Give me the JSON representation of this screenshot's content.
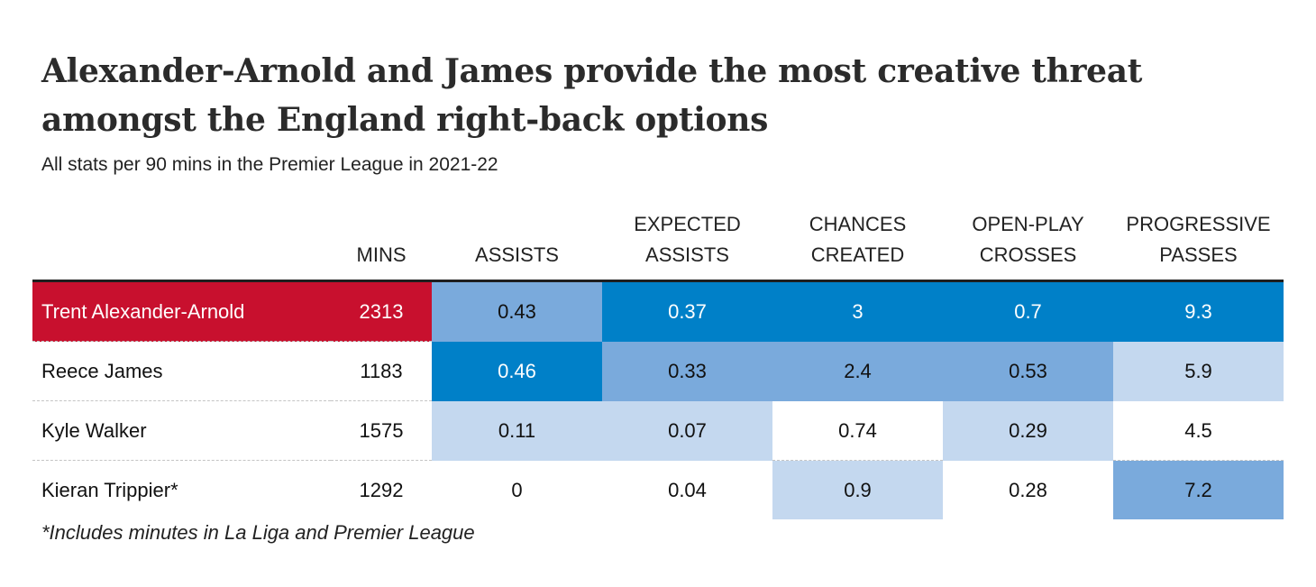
{
  "title": "Alexander-Arnold and James provide the most creative threat amongst the England right-back options",
  "subtitle": "All stats per 90 mins in the Premier League in 2021-22",
  "footnote": "*Includes minutes in La Liga and Premier League",
  "colors": {
    "highlight_red": "#c8102e",
    "shade_high": "#0080c8",
    "shade_mid": "#7aaadc",
    "shade_low": "#c4d8ef",
    "shade_none": "#ffffff"
  },
  "chart_data": {
    "type": "table",
    "title": "Alexander-Arnold and James provide the most creative threat amongst the England right-back options",
    "subtitle": "All stats per 90 mins in the Premier League in 2021-22",
    "columns": [
      {
        "key": "name",
        "lines": [
          ""
        ]
      },
      {
        "key": "mins",
        "lines": [
          "MINS"
        ]
      },
      {
        "key": "assists",
        "lines": [
          "ASSISTS"
        ]
      },
      {
        "key": "xa",
        "lines": [
          "EXPECTED",
          "ASSISTS"
        ]
      },
      {
        "key": "chances",
        "lines": [
          "CHANCES",
          "CREATED"
        ]
      },
      {
        "key": "crosses",
        "lines": [
          "OPEN-PLAY",
          "CROSSES"
        ]
      },
      {
        "key": "progressive",
        "lines": [
          "PROGRESSIVE",
          "PASSES"
        ]
      }
    ],
    "highlighted_row": 0,
    "rows": [
      {
        "name": "Trent Alexander-Arnold",
        "mins": "2313",
        "cells": [
          {
            "value": "0.43",
            "shade": "mid"
          },
          {
            "value": "0.37",
            "shade": "high"
          },
          {
            "value": "3",
            "shade": "high"
          },
          {
            "value": "0.7",
            "shade": "high"
          },
          {
            "value": "9.3",
            "shade": "high"
          }
        ]
      },
      {
        "name": "Reece James",
        "mins": "1183",
        "cells": [
          {
            "value": "0.46",
            "shade": "high"
          },
          {
            "value": "0.33",
            "shade": "mid"
          },
          {
            "value": "2.4",
            "shade": "mid"
          },
          {
            "value": "0.53",
            "shade": "mid"
          },
          {
            "value": "5.9",
            "shade": "low"
          }
        ]
      },
      {
        "name": "Kyle Walker",
        "mins": "1575",
        "cells": [
          {
            "value": "0.11",
            "shade": "low"
          },
          {
            "value": "0.07",
            "shade": "low"
          },
          {
            "value": "0.74",
            "shade": "none"
          },
          {
            "value": "0.29",
            "shade": "low"
          },
          {
            "value": "4.5",
            "shade": "none"
          }
        ]
      },
      {
        "name": "Kieran Trippier*",
        "mins": "1292",
        "cells": [
          {
            "value": "0",
            "shade": "none"
          },
          {
            "value": "0.04",
            "shade": "none"
          },
          {
            "value": "0.9",
            "shade": "low"
          },
          {
            "value": "0.28",
            "shade": "none"
          },
          {
            "value": "7.2",
            "shade": "mid"
          }
        ]
      }
    ]
  }
}
